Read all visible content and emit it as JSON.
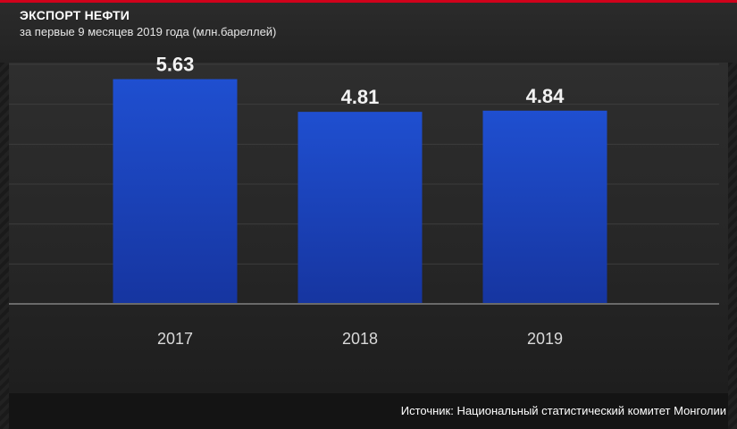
{
  "header": {
    "title": "ЭКСПОРТ НЕФТИ",
    "subtitle": "за первые 9 месяцев 2019 года (млн.бареллей)"
  },
  "footer": {
    "source": "Источник: Национальный статистический комитет Монголии"
  },
  "colors": {
    "accent": "#d0021b",
    "bar_top": "#1f4fd0",
    "bar_bottom": "#1635a0",
    "background": "#141414"
  },
  "chart_data": {
    "type": "bar",
    "categories": [
      "2017",
      "2018",
      "2019"
    ],
    "values": [
      5.63,
      4.81,
      4.84
    ],
    "value_labels": [
      "5.63",
      "4.81",
      "4.84"
    ],
    "title": "ЭКСПОРТ НЕФТИ",
    "subtitle": "за первые 9 месяцев 2019 года (млн.бареллей)",
    "xlabel": "",
    "ylabel": "",
    "ylim": [
      0,
      6
    ],
    "grid": true,
    "legend": "none"
  }
}
